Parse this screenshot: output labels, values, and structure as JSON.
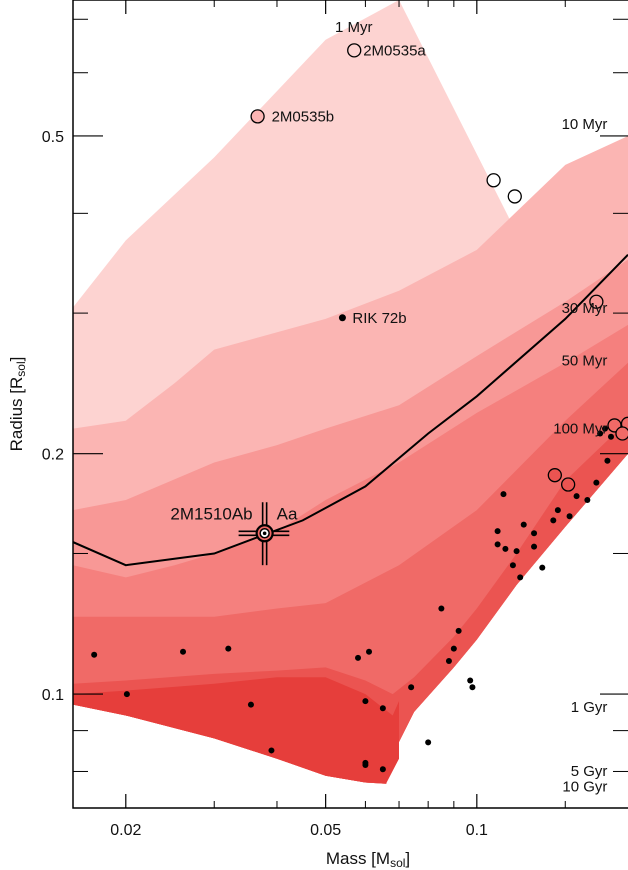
{
  "chart_data": {
    "type": "scatter",
    "xlabel": "Mass [M",
    "xlabel_sub": "sol",
    "xlabel_end": "]",
    "ylabel": "Radius [R",
    "ylabel_sub": "sol",
    "ylabel_end": "]",
    "x_scale": "log",
    "y_scale": "log",
    "xlim": [
      0.0157,
      0.2
    ],
    "ylim": [
      0.072,
      0.74
    ],
    "grid": false,
    "x_ticks": [
      {
        "value": 0.02,
        "label": "0.02"
      },
      {
        "value": 0.05,
        "label": "0.05"
      },
      {
        "value": 0.1,
        "label": "0.1"
      }
    ],
    "y_ticks": [
      {
        "value": 0.1,
        "label": "0.1"
      },
      {
        "value": 0.2,
        "label": "0.2"
      },
      {
        "value": 0.5,
        "label": "0.5"
      }
    ],
    "x_minor_ticks": [
      0.03,
      0.04,
      0.06,
      0.07,
      0.08,
      0.09,
      0.15
    ],
    "y_minor_ticks": [
      0.08,
      0.09,
      0.15,
      0.3,
      0.4,
      0.6,
      0.7
    ],
    "bands": [
      {
        "color": "#fdd3d1",
        "upper": [
          [
            0.0157,
            0.305
          ],
          [
            0.02,
            0.37
          ],
          [
            0.03,
            0.47
          ],
          [
            0.05,
            0.66
          ],
          [
            0.07,
            0.74
          ]
        ]
      },
      {
        "color": "#fbb5b3",
        "upper": [
          [
            0.0157,
            0.215
          ],
          [
            0.02,
            0.22
          ],
          [
            0.025,
            0.245
          ],
          [
            0.03,
            0.27
          ],
          [
            0.05,
            0.295
          ],
          [
            0.07,
            0.32
          ],
          [
            0.1,
            0.36
          ],
          [
            0.15,
            0.46
          ],
          [
            0.2,
            0.5
          ]
        ]
      },
      {
        "color": "#f89896",
        "upper": [
          [
            0.0157,
            0.17
          ],
          [
            0.02,
            0.175
          ],
          [
            0.03,
            0.195
          ],
          [
            0.04,
            0.205
          ],
          [
            0.05,
            0.215
          ],
          [
            0.07,
            0.23
          ],
          [
            0.1,
            0.265
          ],
          [
            0.15,
            0.31
          ],
          [
            0.2,
            0.35
          ]
        ]
      },
      {
        "color": "#f5807e",
        "upper": [
          [
            0.0157,
            0.145
          ],
          [
            0.02,
            0.14
          ],
          [
            0.025,
            0.145
          ],
          [
            0.03,
            0.15
          ],
          [
            0.04,
            0.16
          ],
          [
            0.05,
            0.175
          ],
          [
            0.07,
            0.195
          ],
          [
            0.1,
            0.225
          ],
          [
            0.15,
            0.26
          ],
          [
            0.2,
            0.29
          ]
        ]
      },
      {
        "color": "#f06a67",
        "upper": [
          [
            0.0157,
            0.125
          ],
          [
            0.02,
            0.125
          ],
          [
            0.03,
            0.125
          ],
          [
            0.04,
            0.128
          ],
          [
            0.05,
            0.13
          ],
          [
            0.07,
            0.145
          ],
          [
            0.1,
            0.17
          ],
          [
            0.15,
            0.22
          ],
          [
            0.2,
            0.26
          ]
        ]
      },
      {
        "color": "#eb5451",
        "upper": [
          [
            0.0157,
            0.103
          ],
          [
            0.02,
            0.104
          ],
          [
            0.03,
            0.106
          ],
          [
            0.04,
            0.107
          ],
          [
            0.05,
            0.108
          ],
          [
            0.06,
            0.104
          ],
          [
            0.068,
            0.1
          ],
          [
            0.075,
            0.105
          ],
          [
            0.09,
            0.118
          ],
          [
            0.1,
            0.128
          ],
          [
            0.12,
            0.15
          ],
          [
            0.15,
            0.185
          ],
          [
            0.2,
            0.22
          ]
        ]
      }
    ],
    "band_bottom": {
      "color": "#e63e3b",
      "upper": [
        [
          0.0157,
          0.1
        ],
        [
          0.02,
          0.101
        ],
        [
          0.03,
          0.103
        ],
        [
          0.04,
          0.105
        ],
        [
          0.05,
          0.105
        ],
        [
          0.06,
          0.1
        ],
        [
          0.068,
          0.094
        ],
        [
          0.07,
          0.098
        ]
      ],
      "lower": [
        [
          0.0157,
          0.097
        ],
        [
          0.02,
          0.094
        ],
        [
          0.03,
          0.088
        ],
        [
          0.04,
          0.083
        ],
        [
          0.05,
          0.079
        ],
        [
          0.06,
          0.0775
        ],
        [
          0.066,
          0.0773
        ],
        [
          0.07,
          0.083
        ],
        [
          0.07,
          0.098
        ]
      ]
    },
    "band_outline": [
      [
        0.0157,
        0.097
      ],
      [
        0.02,
        0.094
      ],
      [
        0.03,
        0.088
      ],
      [
        0.04,
        0.083
      ],
      [
        0.05,
        0.079
      ],
      [
        0.06,
        0.0775
      ],
      [
        0.066,
        0.0772
      ],
      [
        0.068,
        0.084
      ],
      [
        0.075,
        0.095
      ],
      [
        0.09,
        0.108
      ],
      [
        0.1,
        0.117
      ],
      [
        0.12,
        0.137
      ],
      [
        0.15,
        0.162
      ],
      [
        0.2,
        0.2
      ]
    ],
    "isochrone_labels": [
      {
        "text": "1 Myr",
        "x": 0.062,
        "y": 0.675
      },
      {
        "text": "10 Myr",
        "x": 0.182,
        "y": 0.51
      },
      {
        "text": "30 Myr",
        "x": 0.182,
        "y": 0.3
      },
      {
        "text": "50 Myr",
        "x": 0.182,
        "y": 0.258
      },
      {
        "text": "100 Myr",
        "x": 0.182,
        "y": 0.212
      },
      {
        "text": "1 Gyr",
        "x": 0.182,
        "y": 0.095
      },
      {
        "text": "5 Gyr",
        "x": 0.182,
        "y": 0.079
      },
      {
        "text": "10 Gyr",
        "x": 0.182,
        "y": 0.0755
      }
    ],
    "line": [
      [
        0.0157,
        0.155
      ],
      [
        0.02,
        0.145
      ],
      [
        0.03,
        0.15
      ],
      [
        0.045,
        0.165
      ],
      [
        0.06,
        0.182
      ],
      [
        0.08,
        0.212
      ],
      [
        0.1,
        0.236
      ],
      [
        0.15,
        0.295
      ],
      [
        0.2,
        0.355
      ]
    ],
    "open_circles": [
      {
        "x": 0.057,
        "y": 0.64,
        "fill": "#fdd3d1",
        "label": "2M0535a"
      },
      {
        "x": 0.0366,
        "y": 0.529,
        "fill": "#fbb5b3",
        "label": "2M0535b"
      },
      {
        "x": 0.108,
        "y": 0.44,
        "fill": "#ffffff",
        "label": ""
      },
      {
        "x": 0.119,
        "y": 0.42,
        "fill": "#ffffff",
        "label": ""
      },
      {
        "x": 0.173,
        "y": 0.31,
        "fill": "#f89896",
        "label": ""
      },
      {
        "x": 0.188,
        "y": 0.217,
        "fill": "#f06a67",
        "label": ""
      },
      {
        "x": 0.2,
        "y": 0.218,
        "fill": "#f06a67",
        "label": ""
      },
      {
        "x": 0.195,
        "y": 0.212,
        "fill": "#f06a67",
        "label": ""
      },
      {
        "x": 0.143,
        "y": 0.188,
        "fill": "#eb5451",
        "label": ""
      },
      {
        "x": 0.152,
        "y": 0.183,
        "fill": "#eb5451",
        "label": ""
      }
    ],
    "target": {
      "x": 0.0378,
      "y": 0.159,
      "label_left": "2M1510Ab",
      "label_right": "Aa",
      "xerr": 0.003,
      "yerr": 0.008
    },
    "rik": {
      "x": 0.054,
      "y": 0.296,
      "label": "RIK 72b"
    },
    "dots": [
      [
        0.0173,
        0.112
      ],
      [
        0.0201,
        0.1
      ],
      [
        0.026,
        0.113
      ],
      [
        0.032,
        0.114
      ],
      [
        0.0355,
        0.097
      ],
      [
        0.039,
        0.085
      ],
      [
        0.058,
        0.111
      ],
      [
        0.061,
        0.113
      ],
      [
        0.06,
        0.098
      ],
      [
        0.065,
        0.096
      ],
      [
        0.06,
        0.0815
      ],
      [
        0.06,
        0.082
      ],
      [
        0.065,
        0.0805
      ],
      [
        0.074,
        0.102
      ],
      [
        0.08,
        0.087
      ],
      [
        0.085,
        0.128
      ],
      [
        0.088,
        0.11
      ],
      [
        0.09,
        0.114
      ],
      [
        0.092,
        0.12
      ],
      [
        0.097,
        0.104
      ],
      [
        0.098,
        0.102
      ],
      [
        0.11,
        0.154
      ],
      [
        0.11,
        0.16
      ],
      [
        0.113,
        0.178
      ],
      [
        0.114,
        0.152
      ],
      [
        0.118,
        0.145
      ],
      [
        0.12,
        0.151
      ],
      [
        0.122,
        0.14
      ],
      [
        0.124,
        0.163
      ],
      [
        0.13,
        0.159
      ],
      [
        0.13,
        0.153
      ],
      [
        0.135,
        0.144
      ],
      [
        0.142,
        0.165
      ],
      [
        0.145,
        0.17
      ],
      [
        0.153,
        0.167
      ],
      [
        0.158,
        0.177
      ],
      [
        0.166,
        0.175
      ],
      [
        0.173,
        0.184
      ],
      [
        0.176,
        0.212
      ],
      [
        0.18,
        0.215
      ],
      [
        0.182,
        0.196
      ],
      [
        0.185,
        0.21
      ],
      [
        0.19,
        0.214
      ],
      [
        0.196,
        0.21
      ]
    ]
  }
}
